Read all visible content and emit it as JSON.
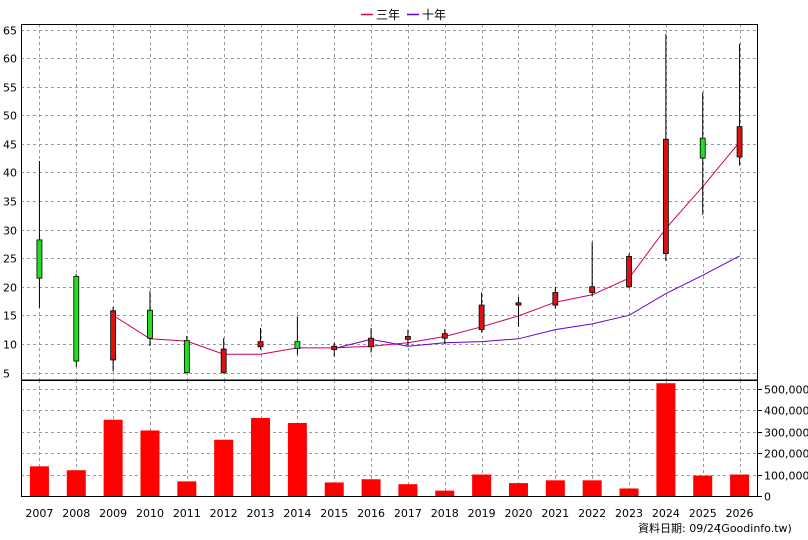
{
  "chart_data": [
    {
      "type": "candlestick",
      "legend": [
        {
          "name": "三年",
          "color": "#cc0066"
        },
        {
          "name": "十年",
          "color": "#6600cc"
        }
      ],
      "legend_position": "top-center",
      "ylim": [
        5,
        65
      ],
      "y_ticks": [
        "5",
        "10",
        "15",
        "20",
        "25",
        "30",
        "35",
        "40",
        "45",
        "50",
        "55",
        "60",
        "65"
      ],
      "grid": true,
      "categories": [
        "2007",
        "2008",
        "2009",
        "2010",
        "2011",
        "2012",
        "2013",
        "2014",
        "2015",
        "2016",
        "2017",
        "2018",
        "2019",
        "2020",
        "2021",
        "2022",
        "2023",
        "2024",
        "2025",
        "2026"
      ],
      "candles": [
        {
          "open": 21.5,
          "close": 28.2,
          "high": 42.0,
          "low": 16.3,
          "up": false
        },
        {
          "open": 7.0,
          "close": 21.8,
          "high": 22.2,
          "low": 6.0,
          "up": false
        },
        {
          "open": 15.8,
          "close": 7.2,
          "high": 16.5,
          "low": 5.2,
          "up": true
        },
        {
          "open": 11.0,
          "close": 15.9,
          "high": 19.2,
          "low": 9.6,
          "up": false
        },
        {
          "open": 5.0,
          "close": 10.6,
          "high": 11.4,
          "low": 4.8,
          "up": false
        },
        {
          "open": 9.1,
          "close": 5.0,
          "high": 11.0,
          "low": 4.8,
          "up": true
        },
        {
          "open": 9.5,
          "close": 10.4,
          "high": 12.8,
          "low": 9.0,
          "up": true
        },
        {
          "open": 9.2,
          "close": 10.4,
          "high": 14.8,
          "low": 8.1,
          "up": false
        },
        {
          "open": 9.0,
          "close": 9.6,
          "high": 10.2,
          "low": 7.8,
          "up": true
        },
        {
          "open": 9.5,
          "close": 11.0,
          "high": 12.8,
          "low": 8.5,
          "up": true
        },
        {
          "open": 10.8,
          "close": 11.3,
          "high": 12.5,
          "low": 9.6,
          "up": true
        },
        {
          "open": 11.0,
          "close": 11.8,
          "high": 12.6,
          "low": 10.0,
          "up": true
        },
        {
          "open": 12.5,
          "close": 16.8,
          "high": 19.0,
          "low": 12.0,
          "up": true
        },
        {
          "open": 16.8,
          "close": 17.2,
          "high": 18.2,
          "low": 13.0,
          "up": true
        },
        {
          "open": 16.8,
          "close": 19.0,
          "high": 20.0,
          "low": 16.2,
          "up": true
        },
        {
          "open": 19.0,
          "close": 20.0,
          "high": 27.8,
          "low": 18.4,
          "up": true
        },
        {
          "open": 20.0,
          "close": 25.3,
          "high": 25.8,
          "low": 19.8,
          "up": true
        },
        {
          "open": 25.8,
          "close": 45.8,
          "high": 64.2,
          "low": 24.5,
          "up": true
        },
        {
          "open": 46.0,
          "close": 42.5,
          "high": 54.0,
          "low": 32.6,
          "up": false
        },
        {
          "open": 42.7,
          "close": 48.0,
          "high": 62.5,
          "low": 41.2,
          "up": true
        }
      ],
      "series": [
        {
          "name": "三年",
          "values": [
            null,
            null,
            15.0,
            10.9,
            10.5,
            8.2,
            8.2,
            9.3,
            9.3,
            9.6,
            10.2,
            11.3,
            13.0,
            14.9,
            17.3,
            18.6,
            21.5,
            30.2,
            37.5,
            45.3
          ]
        },
        {
          "name": "十年",
          "values": [
            null,
            null,
            null,
            null,
            null,
            null,
            null,
            null,
            9.2,
            10.8,
            9.6,
            10.2,
            10.4,
            10.9,
            12.5,
            13.5,
            15.0,
            18.8,
            22.0,
            25.4
          ]
        }
      ]
    },
    {
      "type": "bar",
      "categories": [
        "2007",
        "2008",
        "2009",
        "2010",
        "2011",
        "2012",
        "2013",
        "2014",
        "2015",
        "2016",
        "2017",
        "2018",
        "2019",
        "2020",
        "2021",
        "2022",
        "2023",
        "2024",
        "2025",
        "2026"
      ],
      "values": [
        138000,
        120000,
        355000,
        305000,
        68000,
        262000,
        363000,
        340000,
        63000,
        78000,
        55000,
        25000,
        100000,
        60000,
        73000,
        73000,
        35000,
        525000,
        95000,
        100000
      ],
      "ylim": [
        0,
        540000
      ],
      "y_ticks": [
        "0",
        "100,000",
        "200,000",
        "300,000",
        "400,000",
        "500,000"
      ],
      "bar_color": "#ff0000"
    }
  ],
  "footer": {
    "label": "資料日期: 09/24",
    "source": "(Goodinfo.tw)"
  }
}
